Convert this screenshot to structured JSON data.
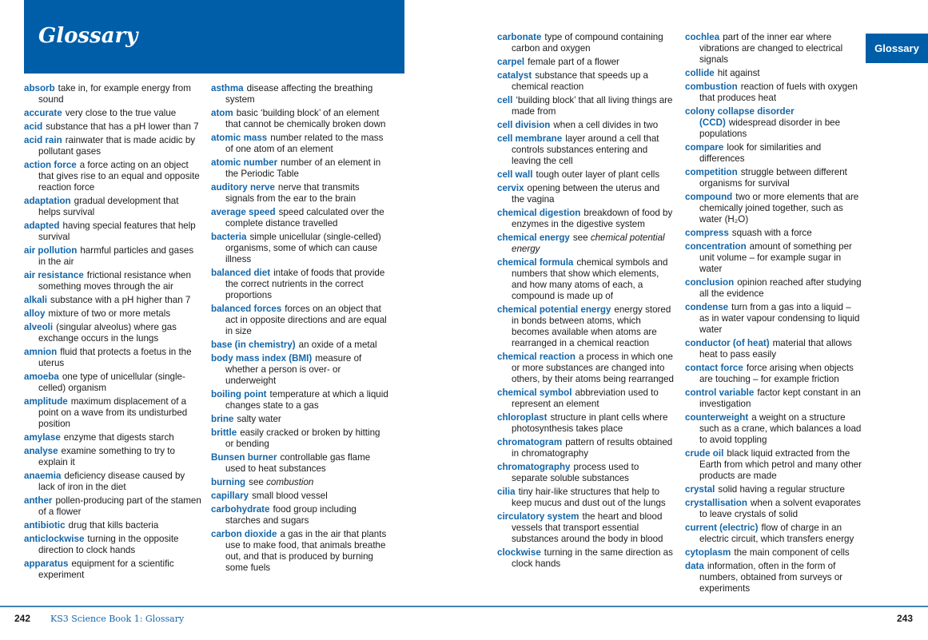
{
  "title": "Glossary",
  "side_tab": "Glossary",
  "footer": {
    "left_page": "242",
    "book": "KS3 Science Book 1: Glossary",
    "right_page": "243"
  },
  "colors": {
    "accent": "#005ea8",
    "term": "#1466a8"
  },
  "columns": [
    [
      {
        "term": "absorb",
        "def": "take in, for example energy from sound"
      },
      {
        "term": "accurate",
        "def": "very close to the true value"
      },
      {
        "term": "acid",
        "def": "substance that has a pH lower than 7"
      },
      {
        "term": "acid rain",
        "def": "rainwater that is made acidic by pollutant gases"
      },
      {
        "term": "action force",
        "def": "a force acting on an object that gives rise to an equal and opposite reaction force"
      },
      {
        "term": "adaptation",
        "def": "gradual development that helps survival"
      },
      {
        "term": "adapted",
        "def": "having special features that help survival"
      },
      {
        "term": "air pollution",
        "def": "harmful particles and gases in the air"
      },
      {
        "term": "air resistance",
        "def": "frictional resistance when something moves through the air"
      },
      {
        "term": "alkali",
        "def": "substance with a pH higher than 7"
      },
      {
        "term": "alloy",
        "def": "mixture of two or more metals"
      },
      {
        "term": "alveoli",
        "def": "(singular alveolus) where gas exchange occurs in the lungs"
      },
      {
        "term": "amnion",
        "def": "fluid that protects a foetus in the uterus"
      },
      {
        "term": "amoeba",
        "def": "one type of unicellular (single-celled) organism"
      },
      {
        "term": "amplitude",
        "def": "maximum displacement of a point on a wave from its undisturbed position"
      },
      {
        "term": "amylase",
        "def": "enzyme that digests starch"
      },
      {
        "term": "analyse",
        "def": "examine something to try to explain it"
      },
      {
        "term": "anaemia",
        "def": "deficiency disease caused by lack of iron in the diet"
      },
      {
        "term": "anther",
        "def": "pollen-producing part of the stamen of a flower"
      },
      {
        "term": "antibiotic",
        "def": "drug that kills bacteria"
      },
      {
        "term": "anticlockwise",
        "def": "turning in the opposite direction to clock hands"
      },
      {
        "term": "apparatus",
        "def": "equipment for a scientific experiment"
      }
    ],
    [
      {
        "term": "asthma",
        "def": "disease affecting the breathing system"
      },
      {
        "term": "atom",
        "def": "basic ‘building block’ of an element that cannot be chemically broken down"
      },
      {
        "term": "atomic mass",
        "def": "number related to the mass of one atom of an element"
      },
      {
        "term": "atomic number",
        "def": "number of an element in the Periodic Table"
      },
      {
        "term": "auditory nerve",
        "def": "nerve that transmits signals from the ear to the brain"
      },
      {
        "term": "average speed",
        "def": "speed calculated over the complete distance travelled"
      },
      {
        "term": "bacteria",
        "def": "simple unicellular (single-celled) organisms, some of which can cause illness"
      },
      {
        "term": "balanced diet",
        "def": "intake of foods that provide the correct nutrients in the correct proportions"
      },
      {
        "term": "balanced forces",
        "def": "forces on an object that act in opposite directions and are equal in size"
      },
      {
        "term": "base (in chemistry)",
        "def": "an oxide of a metal"
      },
      {
        "term": "body mass index (BMI)",
        "def": "measure of whether a person is over- or underweight"
      },
      {
        "term": "boiling point",
        "def": "temperature at which a liquid changes state to a gas"
      },
      {
        "term": "brine",
        "def": "salty water"
      },
      {
        "term": "brittle",
        "def": "easily cracked or broken by hitting or bending"
      },
      {
        "term": "Bunsen burner",
        "def": "controllable gas flame used to heat substances"
      },
      {
        "term": "burning",
        "def": "see",
        "see": "combustion"
      },
      {
        "term": "capillary",
        "def": "small blood vessel"
      },
      {
        "term": "carbohydrate",
        "def": "food group including starches and sugars"
      },
      {
        "term": "carbon dioxide",
        "def": "a gas in the air that plants use to make food, that animals breathe out, and that is produced by burning some fuels"
      }
    ],
    [
      {
        "term": "carbonate",
        "def": "type of compound containing carbon and oxygen"
      },
      {
        "term": "carpel",
        "def": "female part of a flower"
      },
      {
        "term": "catalyst",
        "def": "substance that speeds up a chemical reaction"
      },
      {
        "term": "cell",
        "def": "‘building block’ that all living things are made from"
      },
      {
        "term": "cell division",
        "def": "when a cell divides in two"
      },
      {
        "term": "cell membrane",
        "def": "layer around a cell that controls substances entering and leaving the cell"
      },
      {
        "term": "cell wall",
        "def": "tough outer layer of plant cells"
      },
      {
        "term": "cervix",
        "def": "opening between the uterus and the vagina"
      },
      {
        "term": "chemical digestion",
        "def": "breakdown of food by enzymes in the digestive system"
      },
      {
        "term": "chemical energy",
        "def": "see",
        "see": "chemical potential energy"
      },
      {
        "term": "chemical formula",
        "def": "chemical symbols and numbers that show which elements, and how many atoms of each, a compound is made up of"
      },
      {
        "term": "chemical potential energy",
        "def": "energy stored in bonds between atoms, which becomes available when atoms are rearranged in a chemical reaction"
      },
      {
        "term": "chemical reaction",
        "def": "a process in which one or more substances are changed into others, by their atoms being rearranged"
      },
      {
        "term": "chemical symbol",
        "def": "abbreviation used to represent an element"
      },
      {
        "term": "chloroplast",
        "def": "structure in plant cells where photosynthesis takes place"
      },
      {
        "term": "chromatogram",
        "def": "pattern of results obtained in chromatography"
      },
      {
        "term": "chromatography",
        "def": "process used to separate soluble substances"
      },
      {
        "term": "cilia",
        "def": "tiny hair-like structures that help to keep mucus and dust out of the lungs"
      },
      {
        "term": "circulatory system",
        "def": "the heart and blood vessels that transport essential substances around the body in blood"
      },
      {
        "term": "clockwise",
        "def": "turning in the same direction as clock hands"
      }
    ],
    [
      {
        "term": "cochlea",
        "def": "part of the inner ear where vibrations are changed to electrical signals"
      },
      {
        "term": "collide",
        "def": "hit against"
      },
      {
        "term": "combustion",
        "def": "reaction of fuels with oxygen that produces heat"
      },
      {
        "term": "colony collapse disorder (CCD)",
        "def": "widespread disorder in bee populations"
      },
      {
        "term": "compare",
        "def": "look for similarities and differences"
      },
      {
        "term": "competition",
        "def": "struggle between different organisms for survival"
      },
      {
        "term": "compound",
        "def": "two or more elements that are chemically joined together, such as water (H₂O)"
      },
      {
        "term": "compress",
        "def": "squash with a force"
      },
      {
        "term": "concentration",
        "def": "amount of something per unit volume – for example sugar in water"
      },
      {
        "term": "conclusion",
        "def": "opinion reached after studying all the evidence"
      },
      {
        "term": "condense",
        "def": "turn from a gas into a liquid – as in water vapour condensing to liquid water"
      },
      {
        "term": "conductor (of heat)",
        "def": "material that allows heat to pass easily"
      },
      {
        "term": "contact force",
        "def": "force arising when objects are touching – for example friction"
      },
      {
        "term": "control variable",
        "def": "factor kept constant in an investigation"
      },
      {
        "term": "counterweight",
        "def": "a weight on a structure such as a crane, which balances a load to avoid toppling"
      },
      {
        "term": "crude oil",
        "def": "black liquid extracted from the Earth from which petrol and many other products are made"
      },
      {
        "term": "crystal",
        "def": "solid having a regular structure"
      },
      {
        "term": "crystallisation",
        "def": "when a solvent evaporates to leave crystals of solid"
      },
      {
        "term": "current (electric)",
        "def": "flow of charge in an electric circuit, which transfers energy"
      },
      {
        "term": "cytoplasm",
        "def": "the main component of cells"
      },
      {
        "term": "data",
        "def": "information, often in the form of numbers, obtained from surveys or experiments"
      }
    ]
  ]
}
